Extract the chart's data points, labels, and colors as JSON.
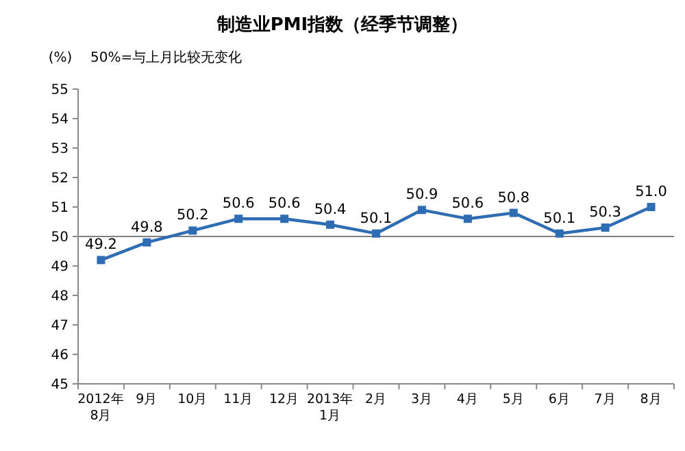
{
  "chart_data": {
    "type": "line",
    "title": "制造业PMI指数（经季节调整）",
    "ylabel": "(%)",
    "annotations": [
      "50%=与上月比较无变化"
    ],
    "categories": [
      "2012年\n8月",
      "9月",
      "10月",
      "11月",
      "12月",
      "2013年\n1月",
      "2月",
      "3月",
      "4月",
      "5月",
      "6月",
      "7月",
      "8月"
    ],
    "series": [
      {
        "color": "#2e6db4",
        "values": [
          49.2,
          49.8,
          50.2,
          50.6,
          50.6,
          50.4,
          50.1,
          50.9,
          50.6,
          50.8,
          50.1,
          50.3,
          51.0
        ],
        "value_labels": [
          "49.2",
          "49.8",
          "50.2",
          "50.6",
          "50.6",
          "50.4",
          "50.1",
          "50.9",
          "50.6",
          "50.8",
          "50.1",
          "50.3",
          "51.0"
        ]
      }
    ],
    "ylim": [
      45,
      55
    ],
    "yticks": [
      45,
      46,
      47,
      48,
      49,
      50,
      51,
      52,
      53,
      54,
      55
    ],
    "ref_lines": [
      {
        "axis": "y",
        "value": 50,
        "label": null,
        "color": "#808080"
      }
    ],
    "marker": "square",
    "line_style": "solid",
    "grid": false
  }
}
